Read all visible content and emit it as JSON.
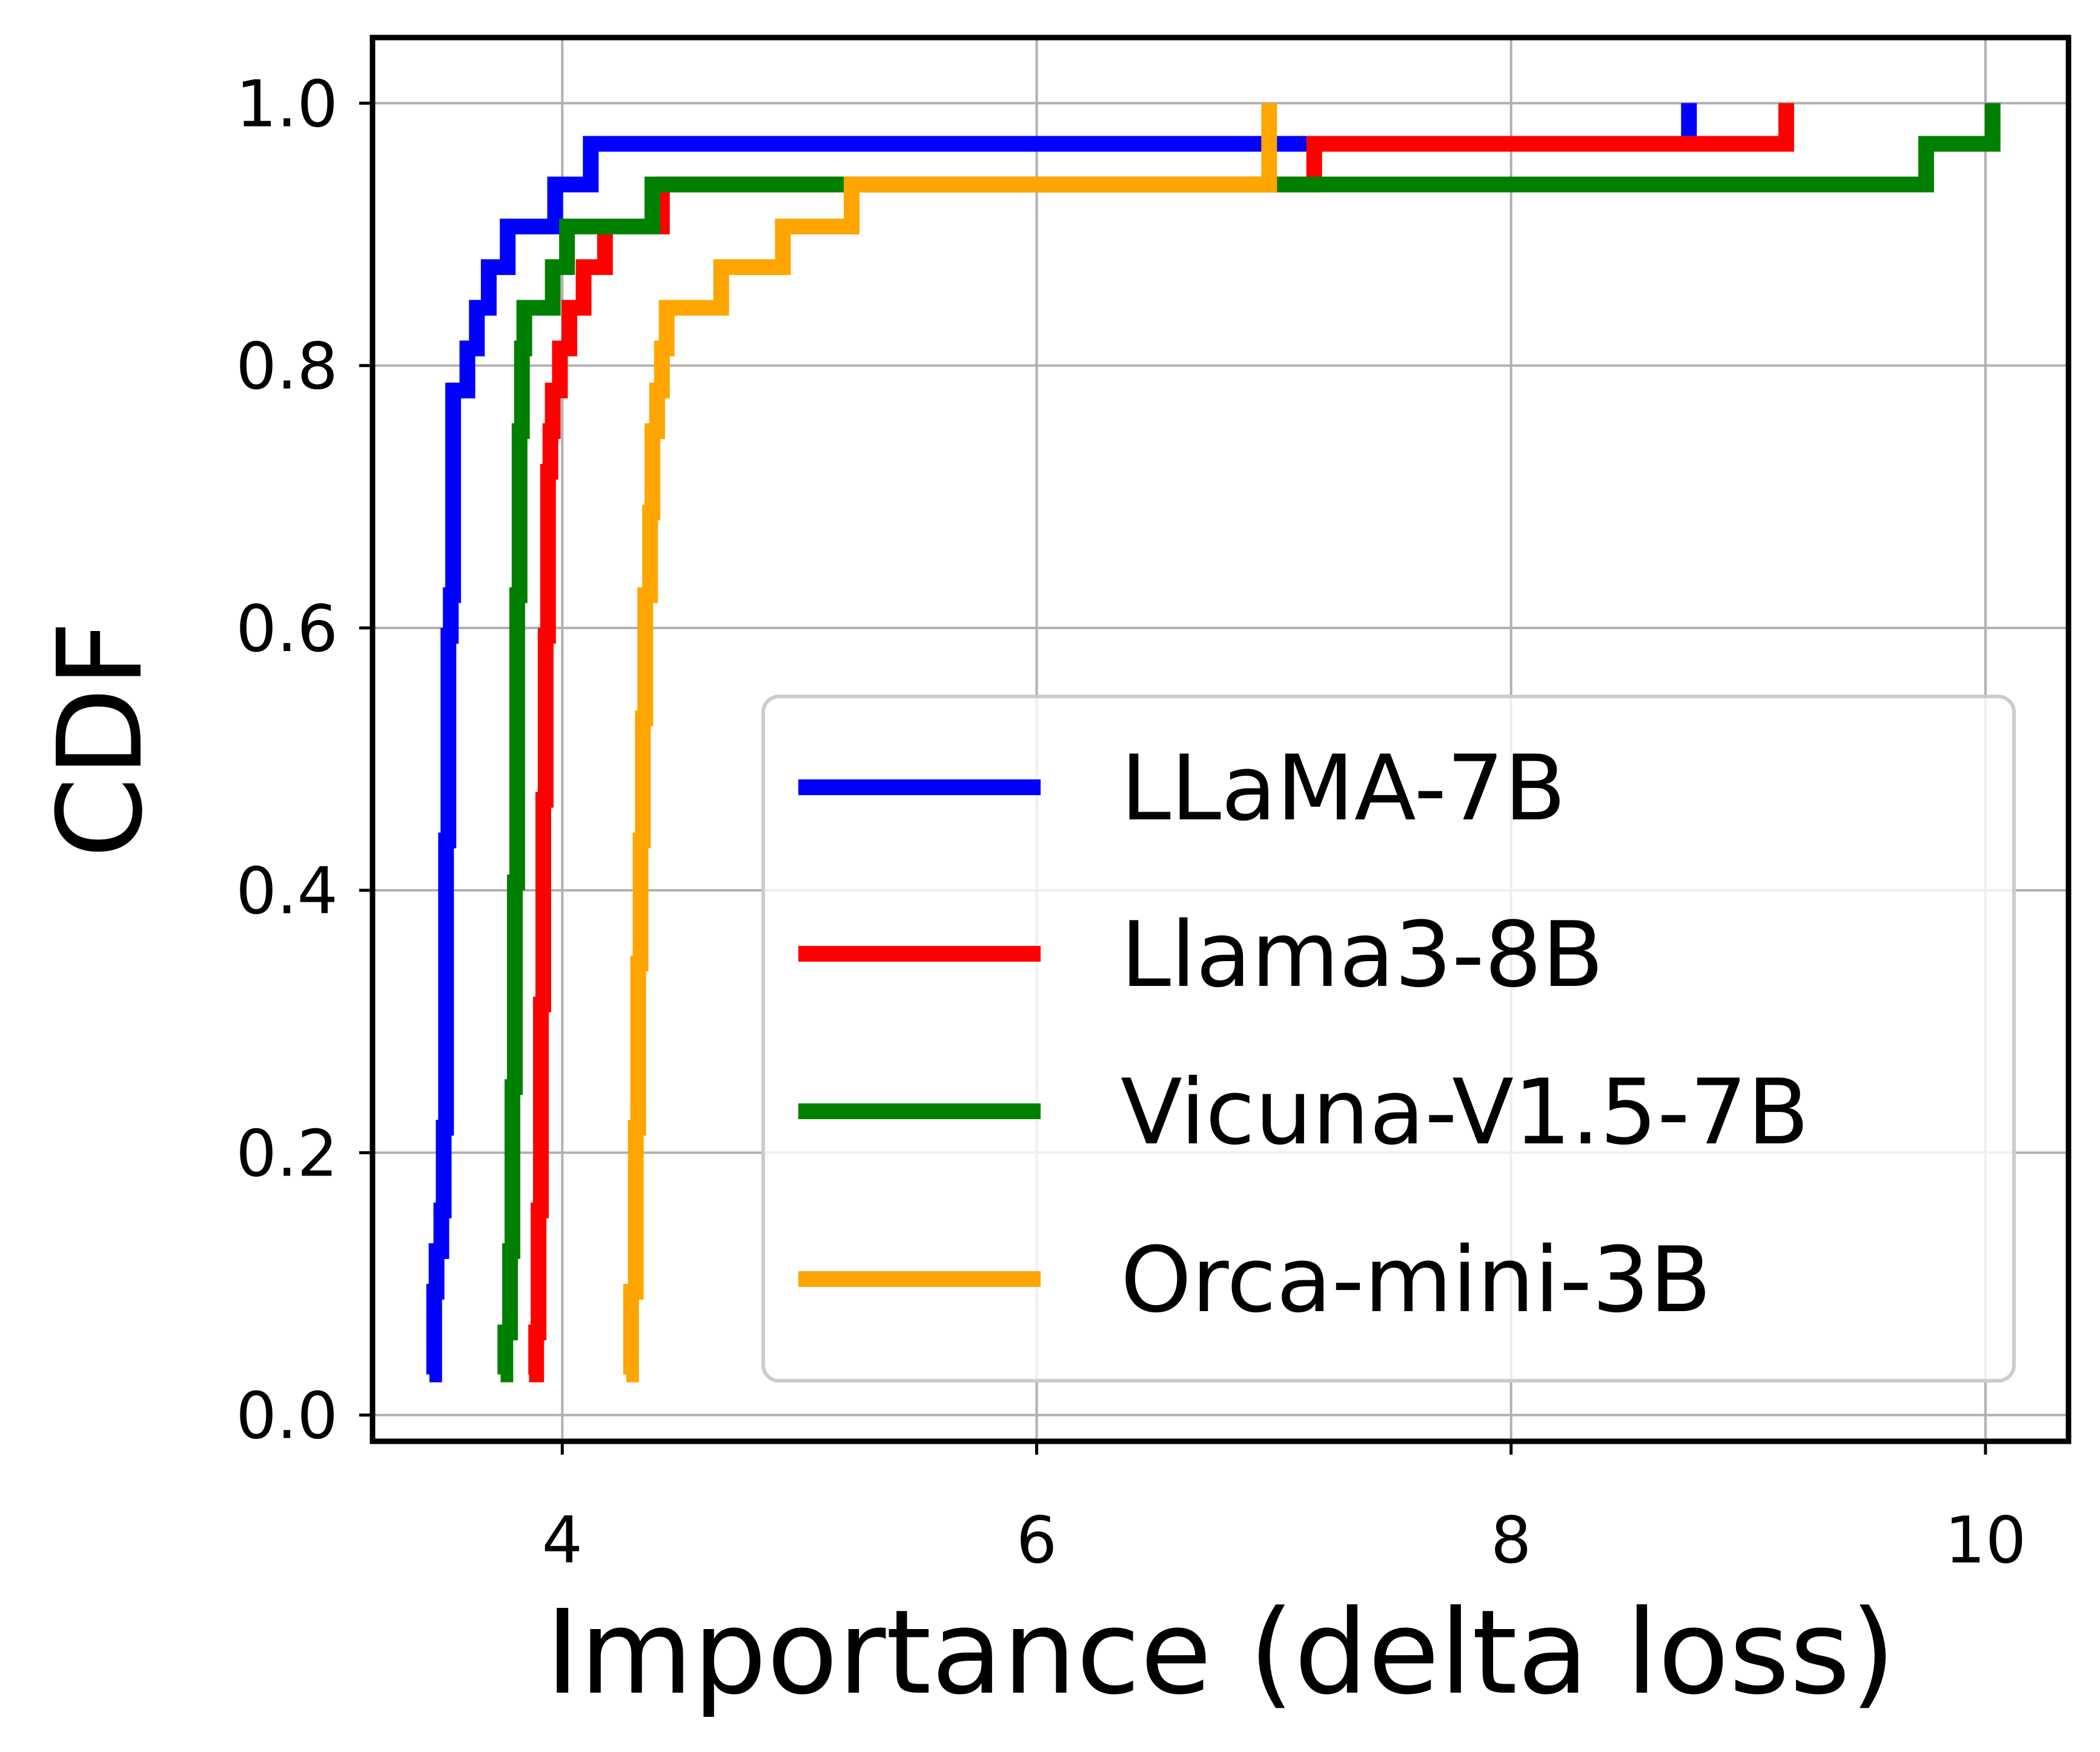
{
  "chart_data": {
    "type": "line",
    "title": "",
    "xlabel": "Importance (delta loss)",
    "ylabel": "CDF",
    "xlim": [
      3.2,
      10.35
    ],
    "ylim": [
      -0.02,
      1.05
    ],
    "xticks": [
      4,
      6,
      8,
      10
    ],
    "xtick_labels": [
      "4",
      "6",
      "8",
      "10"
    ],
    "yticks": [
      0.0,
      0.2,
      0.4,
      0.6,
      0.8,
      1.0
    ],
    "ytick_labels": [
      "0.0",
      "0.2",
      "0.4",
      "0.6",
      "0.8",
      "1.0"
    ],
    "grid": true,
    "legend_position": "lower-right",
    "series": [
      {
        "name": "LLaMA-7B",
        "color": "#0000ff",
        "x": [
          3.44,
          3.46,
          3.47,
          3.49,
          3.5,
          3.51,
          3.52,
          3.53,
          3.54,
          3.6,
          3.64,
          3.69,
          3.77,
          3.97,
          4.12,
          6.8,
          8.75
        ],
        "y": [
          0.031,
          0.094,
          0.125,
          0.156,
          0.219,
          0.438,
          0.594,
          0.625,
          0.781,
          0.813,
          0.844,
          0.875,
          0.906,
          0.938,
          0.969,
          0.969,
          1.0
        ]
      },
      {
        "name": "Llama3-8B",
        "color": "#ff0000",
        "x": [
          3.86,
          3.89,
          3.9,
          3.91,
          3.92,
          3.93,
          3.94,
          3.95,
          3.96,
          3.99,
          4.03,
          4.09,
          4.18,
          4.42,
          5.09,
          7.17,
          9.16
        ],
        "y": [
          0.031,
          0.063,
          0.156,
          0.313,
          0.469,
          0.594,
          0.719,
          0.75,
          0.781,
          0.813,
          0.844,
          0.875,
          0.906,
          0.938,
          0.938,
          0.969,
          1.0
        ]
      },
      {
        "name": "Vicuna-V1.5-7B",
        "color": "#008000",
        "x": [
          3.74,
          3.76,
          3.78,
          3.79,
          3.8,
          3.81,
          3.82,
          3.83,
          3.84,
          3.96,
          4.02,
          4.38,
          9.75,
          10.03
        ],
        "y": [
          0.031,
          0.063,
          0.125,
          0.25,
          0.406,
          0.625,
          0.75,
          0.813,
          0.844,
          0.875,
          0.906,
          0.938,
          0.969,
          1.0
        ]
      },
      {
        "name": "Orca-mini-3B",
        "color": "#ffa500",
        "x": [
          4.27,
          4.29,
          4.31,
          4.32,
          4.33,
          4.34,
          4.35,
          4.37,
          4.38,
          4.4,
          4.42,
          4.44,
          4.67,
          4.93,
          5.22,
          6.98
        ],
        "y": [
          0.031,
          0.094,
          0.219,
          0.344,
          0.438,
          0.531,
          0.625,
          0.688,
          0.75,
          0.781,
          0.813,
          0.844,
          0.875,
          0.906,
          0.938,
          1.0
        ]
      }
    ]
  }
}
